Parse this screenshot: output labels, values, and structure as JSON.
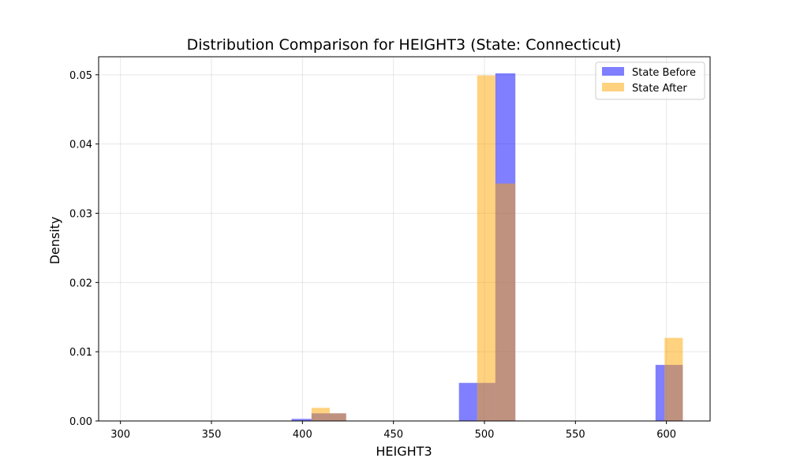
{
  "chart_data": {
    "type": "bar",
    "title": "Distribution Comparison for HEIGHT3 (State: Connecticut)",
    "xlabel": "HEIGHT3",
    "ylabel": "Density",
    "xlim": [
      288,
      624
    ],
    "ylim": [
      0,
      0.0526
    ],
    "xticks": [
      300,
      350,
      400,
      450,
      500,
      550,
      600
    ],
    "yticks": [
      0.0,
      0.01,
      0.02,
      0.03,
      0.04,
      0.05
    ],
    "ytick_labels": [
      "0.00",
      "0.01",
      "0.02",
      "0.03",
      "0.04",
      "0.05"
    ],
    "grid": true,
    "legend_position": "top-right",
    "series": [
      {
        "name": "State Before",
        "color": "#0000ff",
        "opacity": 0.5,
        "bins": [
          {
            "x0": 394,
            "x1": 405,
            "value": 0.0003
          },
          {
            "x0": 405,
            "x1": 424,
            "value": 0.0011
          },
          {
            "x0": 486,
            "x1": 496,
            "value": 0.0055
          },
          {
            "x0": 496,
            "x1": 506,
            "value": 0.0055
          },
          {
            "x0": 506,
            "x1": 517,
            "value": 0.0502
          },
          {
            "x0": 594,
            "x1": 599,
            "value": 0.0081
          },
          {
            "x0": 599,
            "x1": 609,
            "value": 0.0081
          }
        ]
      },
      {
        "name": "State After",
        "color": "#ffa500",
        "opacity": 0.5,
        "bins": [
          {
            "x0": 405,
            "x1": 415,
            "value": 0.0019
          },
          {
            "x0": 415,
            "x1": 424,
            "value": 0.0011
          },
          {
            "x0": 496,
            "x1": 506,
            "value": 0.0499
          },
          {
            "x0": 506,
            "x1": 517,
            "value": 0.0343
          },
          {
            "x0": 599,
            "x1": 609,
            "value": 0.012
          }
        ]
      }
    ]
  }
}
